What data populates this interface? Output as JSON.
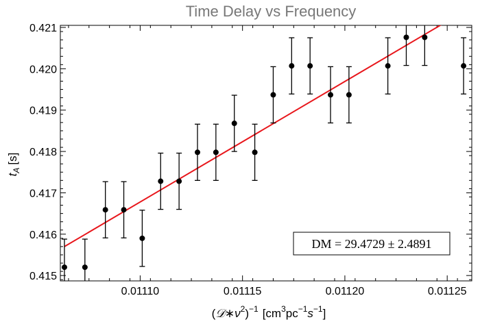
{
  "chart_data": {
    "type": "scatter",
    "title": "Time Delay vs Frequency",
    "xlabel_parts": {
      "open": "(",
      "d": "𝒟",
      "star": "∗",
      "nu": "ν",
      "nu_exp": "2",
      "close": ")",
      "inv_exp": "−1",
      "unit_open": "[cm",
      "unit_cm_exp": "3",
      "unit_pc": "pc",
      "unit_pc_exp": "−1",
      "unit_s": "s",
      "unit_s_exp": "−1",
      "unit_close": "]"
    },
    "ylabel_parts": {
      "main": "t",
      "sub": "A",
      "unit": "[s]"
    },
    "xlim": [
      0.011061,
      0.011262
    ],
    "ylim": [
      0.41487,
      0.42105
    ],
    "x_ticks": [
      0.0111,
      0.01115,
      0.0112,
      0.01125
    ],
    "x_tick_labels": [
      "0.01110",
      "0.01115",
      "0.01120",
      "0.01125"
    ],
    "y_ticks": [
      0.415,
      0.416,
      0.417,
      0.418,
      0.419,
      0.42,
      0.421
    ],
    "y_tick_labels": [
      "0.415",
      "0.416",
      "0.417",
      "0.418",
      "0.419",
      "0.420",
      "0.421"
    ],
    "points": [
      {
        "x": 0.011063,
        "y": 0.4152,
        "err": 0.00068
      },
      {
        "x": 0.011073,
        "y": 0.4152,
        "err": 0.00068
      },
      {
        "x": 0.011083,
        "y": 0.41659,
        "err": 0.00068
      },
      {
        "x": 0.011092,
        "y": 0.41659,
        "err": 0.00068
      },
      {
        "x": 0.011101,
        "y": 0.4159,
        "err": 0.00068
      },
      {
        "x": 0.01111,
        "y": 0.41728,
        "err": 0.00068
      },
      {
        "x": 0.011119,
        "y": 0.41728,
        "err": 0.00068
      },
      {
        "x": 0.011128,
        "y": 0.41798,
        "err": 0.00068
      },
      {
        "x": 0.011137,
        "y": 0.41798,
        "err": 0.00068
      },
      {
        "x": 0.011146,
        "y": 0.41868,
        "err": 0.00068
      },
      {
        "x": 0.011156,
        "y": 0.41798,
        "err": 0.00068
      },
      {
        "x": 0.011165,
        "y": 0.41937,
        "err": 0.00068
      },
      {
        "x": 0.011174,
        "y": 0.42007,
        "err": 0.00068
      },
      {
        "x": 0.011183,
        "y": 0.42007,
        "err": 0.00068
      },
      {
        "x": 0.011193,
        "y": 0.41937,
        "err": 0.00068
      },
      {
        "x": 0.011202,
        "y": 0.41937,
        "err": 0.00068
      },
      {
        "x": 0.011221,
        "y": 0.42007,
        "err": 0.00068
      },
      {
        "x": 0.01123,
        "y": 0.42076,
        "err": 0.00068
      },
      {
        "x": 0.011239,
        "y": 0.42076,
        "err": 0.00068
      },
      {
        "x": 0.011258,
        "y": 0.42007,
        "err": 0.00068
      }
    ],
    "fit_line": {
      "x": [
        0.011063,
        0.01125
      ],
      "y": [
        0.4157,
        0.42115
      ]
    },
    "annotation": "DM = 29.4729 ± 2.4891",
    "grid": false,
    "colors": {
      "points": "#000000",
      "fit": "#e8161b",
      "title": "#777777"
    }
  }
}
